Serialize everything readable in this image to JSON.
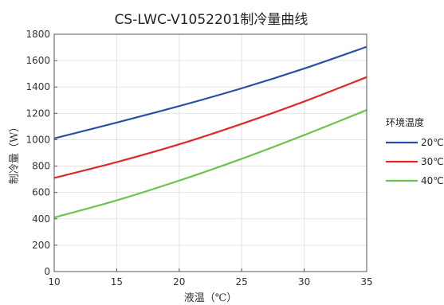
{
  "chart_data": {
    "type": "line",
    "title": "CS-LWC-V1052201制冷量曲线",
    "xlabel": "液温（℃）",
    "ylabel": "制冷量（W）",
    "xlim": [
      10,
      35
    ],
    "ylim": [
      0,
      1800
    ],
    "xticks": [
      "10",
      "15",
      "20",
      "25",
      "30",
      "35"
    ],
    "yticks": [
      "0",
      "200",
      "400",
      "600",
      "800",
      "1000",
      "1200",
      "1400",
      "1600",
      "1800"
    ],
    "grid": true,
    "legend": {
      "title": "环境温度",
      "placement": "right"
    },
    "x": [
      10,
      15,
      20,
      25,
      30,
      35
    ],
    "series": [
      {
        "name": "20℃",
        "color": "#2a4fa8",
        "values": [
          1010,
          1130,
          1255,
          1390,
          1540,
          1705
        ]
      },
      {
        "name": "30℃",
        "color": "#e02828",
        "values": [
          710,
          830,
          965,
          1120,
          1290,
          1475
        ]
      },
      {
        "name": "40℃",
        "color": "#6cc24a",
        "values": [
          410,
          540,
          690,
          855,
          1035,
          1225
        ]
      }
    ]
  }
}
